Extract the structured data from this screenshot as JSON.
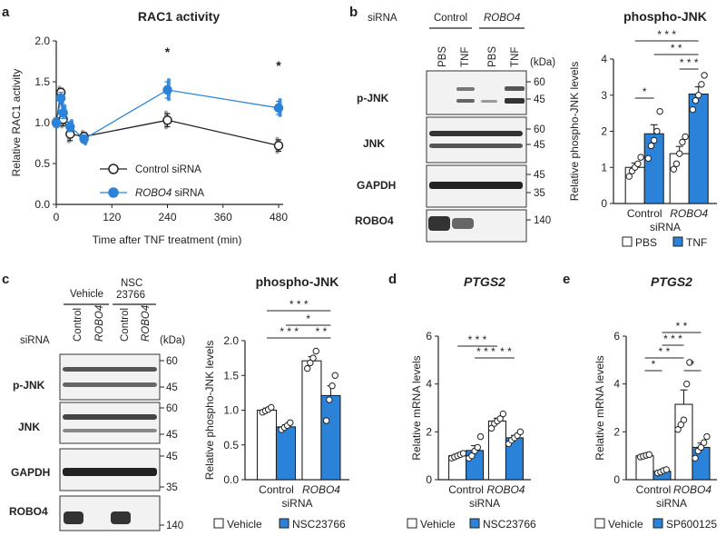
{
  "panels": {
    "a": "a",
    "b": "b",
    "c": "c",
    "d": "d",
    "e": "e"
  },
  "colors": {
    "blue": "#2b83d9",
    "white": "#ffffff",
    "black": "#222222",
    "grey": "#9a9a9a"
  },
  "blots": {
    "b": {
      "siRNA": "siRNA",
      "control": "Control",
      "robo4": "ROBO4",
      "lanes": [
        "PBS",
        "TNF",
        "PBS",
        "TNF"
      ],
      "kda": "(kDa)",
      "rows": [
        {
          "label": "p-JNK",
          "markers": [
            "60",
            "45"
          ]
        },
        {
          "label": "JNK",
          "markers": [
            "60",
            "45"
          ]
        },
        {
          "label": "GAPDH",
          "markers": [
            "45",
            "35"
          ]
        },
        {
          "label": "ROBO4",
          "markers": [
            "140"
          ]
        }
      ]
    },
    "c": {
      "siRNA": "siRNA",
      "vehicle": "Vehicle",
      "nsc": "NSC 23766",
      "lanes": [
        "Control",
        "ROBO4",
        "Control",
        "ROBO4"
      ],
      "kda": "(kDa)",
      "rows": [
        {
          "label": "p-JNK",
          "markers": [
            "60",
            "45"
          ]
        },
        {
          "label": "JNK",
          "markers": [
            "60",
            "45"
          ]
        },
        {
          "label": "GAPDH",
          "markers": [
            "45",
            "35"
          ]
        },
        {
          "label": "ROBO4",
          "markers": [
            "140"
          ]
        }
      ]
    }
  },
  "chart_data": [
    {
      "id": "a",
      "type": "line",
      "title": "RAC1 activity",
      "xlabel": "Time after TNF treatment (min)",
      "ylabel": "Relative RAC1 activity",
      "xlim": [
        0,
        480
      ],
      "ylim": [
        0,
        2.0
      ],
      "xticks": [
        "0",
        "120",
        "240",
        "360",
        "480"
      ],
      "yticks": [
        "0.0",
        "0.5",
        "1.0",
        "1.5",
        "2.0"
      ],
      "x": [
        0,
        10,
        15,
        30,
        60,
        240,
        480
      ],
      "series": [
        {
          "name": "Control siRNA",
          "color": "#ffffff",
          "values": [
            1.0,
            1.37,
            1.04,
            0.86,
            0.83,
            1.03,
            0.72
          ],
          "errors": [
            0.04,
            0.05,
            0.08,
            0.08,
            0.05,
            0.08,
            0.07
          ]
        },
        {
          "name": "ROBO4 siRNA",
          "color": "#2b83d9",
          "values": [
            1.0,
            1.3,
            1.12,
            0.95,
            0.8,
            1.4,
            1.18
          ],
          "errors": [
            0.04,
            0.07,
            0.07,
            0.06,
            0.05,
            0.1,
            0.08
          ]
        }
      ],
      "annotations": [
        "*",
        "*"
      ],
      "legend": {
        "control": "Control siRNA",
        "robo4_italic": "ROBO4",
        "robo4_rest": " siRNA"
      }
    },
    {
      "id": "b",
      "type": "bar",
      "title": "phospho-JNK",
      "ylabel": "Relative phospho-JNK levels",
      "ylim": [
        0,
        4
      ],
      "yticks": [
        "0",
        "1",
        "2",
        "3",
        "4"
      ],
      "categories": [
        "Control",
        "ROBO4"
      ],
      "xlabel": "siRNA",
      "series": [
        {
          "name": "PBS",
          "color": "#ffffff",
          "values": [
            1.0,
            1.38
          ],
          "errors": [
            0.12,
            0.2
          ],
          "points": [
            [
              0.75,
              0.9,
              1.0,
              1.1,
              1.28
            ],
            [
              0.95,
              1.1,
              1.38,
              1.7,
              1.85
            ]
          ]
        },
        {
          "name": "TNF",
          "color": "#2b83d9",
          "values": [
            1.93,
            3.03
          ],
          "errors": [
            0.25,
            0.2
          ],
          "points": [
            [
              1.25,
              1.6,
              1.75,
              2.0,
              2.55
            ],
            [
              2.6,
              2.85,
              3.0,
              3.3,
              3.55
            ]
          ]
        }
      ],
      "significance": [
        "*",
        "* * *",
        "* *",
        "* * *"
      ],
      "legend": [
        "PBS",
        "TNF"
      ]
    },
    {
      "id": "c",
      "type": "bar",
      "title": "phospho-JNK",
      "ylabel": "Relative phospho-JNK levels",
      "ylim": [
        0,
        2.0
      ],
      "yticks": [
        "0.0",
        "0.5",
        "1.0",
        "1.5",
        "2.0"
      ],
      "categories": [
        "Control",
        "ROBO4"
      ],
      "xlabel": "siRNA",
      "series": [
        {
          "name": "Vehicle",
          "color": "#ffffff",
          "values": [
            1.0,
            1.71
          ],
          "errors": [
            0.03,
            0.06
          ],
          "points": [
            [
              0.97,
              0.99,
              1.01,
              1.04
            ],
            [
              1.6,
              1.68,
              1.75,
              1.85
            ]
          ]
        },
        {
          "name": "NSC23766",
          "color": "#2b83d9",
          "values": [
            0.76,
            1.21
          ],
          "errors": [
            0.03,
            0.14
          ],
          "points": [
            [
              0.72,
              0.75,
              0.78,
              0.82
            ],
            [
              0.85,
              1.15,
              1.35,
              1.5
            ]
          ]
        }
      ],
      "significance": [
        "* * *",
        "*",
        "* * *",
        "* *"
      ],
      "legend": [
        "Vehicle",
        "NSC23766"
      ]
    },
    {
      "id": "d",
      "type": "bar",
      "title": "PTGS2",
      "ylabel": "Relative mRNA levels",
      "ylim": [
        0,
        6
      ],
      "yticks": [
        "0",
        "2",
        "4",
        "6"
      ],
      "categories": [
        "Control",
        "ROBO4"
      ],
      "xlabel": "siRNA",
      "series": [
        {
          "name": "Vehicle",
          "color": "#ffffff",
          "values": [
            1.0,
            2.45
          ],
          "errors": [
            0.06,
            0.12
          ],
          "points": [
            [
              0.9,
              0.95,
              1.0,
              1.05,
              1.1
            ],
            [
              2.15,
              2.35,
              2.45,
              2.55,
              2.75
            ]
          ]
        },
        {
          "name": "NSC23766",
          "color": "#2b83d9",
          "values": [
            1.22,
            1.75
          ],
          "errors": [
            0.2,
            0.1
          ],
          "points": [
            [
              0.9,
              1.0,
              1.2,
              1.35,
              1.8
            ],
            [
              1.5,
              1.65,
              1.75,
              1.85,
              2.0
            ]
          ]
        }
      ],
      "significance": [
        "* * *",
        "* * *",
        "* *"
      ],
      "legend": [
        "Vehicle",
        "NSC23766"
      ]
    },
    {
      "id": "e",
      "type": "bar",
      "title": "PTGS2",
      "ylabel": "Relative mRNA levels",
      "ylim": [
        0,
        6
      ],
      "yticks": [
        "0",
        "2",
        "4",
        "6"
      ],
      "categories": [
        "Control",
        "ROBO4"
      ],
      "xlabel": "siRNA",
      "series": [
        {
          "name": "Vehicle",
          "color": "#ffffff",
          "values": [
            1.0,
            3.15
          ],
          "errors": [
            0.05,
            0.6
          ],
          "points": [
            [
              0.95,
              0.98,
              1.02,
              1.05
            ],
            [
              2.1,
              2.3,
              2.5,
              4.0,
              4.9
            ]
          ]
        },
        {
          "name": "SP600125",
          "color": "#2b83d9",
          "values": [
            0.35,
            1.35
          ],
          "errors": [
            0.05,
            0.18
          ],
          "points": [
            [
              0.28,
              0.32,
              0.38,
              0.42
            ],
            [
              0.9,
              1.2,
              1.35,
              1.55,
              1.8
            ]
          ]
        }
      ],
      "significance": [
        "*",
        "* *",
        "* * *",
        "* *",
        "*"
      ],
      "legend": [
        "Vehicle",
        "SP600125"
      ]
    }
  ]
}
